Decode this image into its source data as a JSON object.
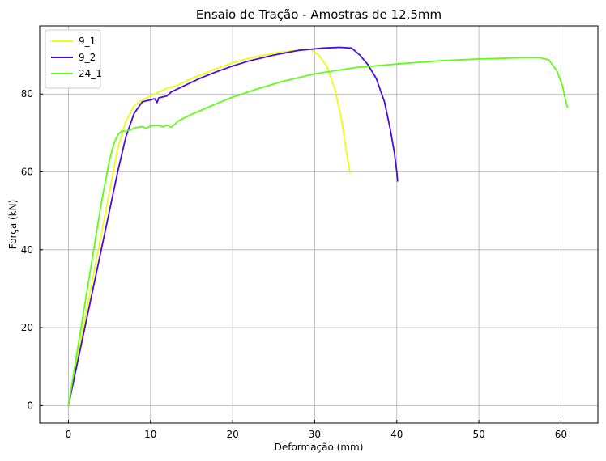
{
  "chart_data": {
    "type": "line",
    "title": "Ensaio de Tração - Amostras de 12,5mm",
    "xlabel": "Deformação (mm)",
    "ylabel": "Força (kN)",
    "xlim": [
      -3.5,
      64.5
    ],
    "ylim": [
      -4.5,
      97.5
    ],
    "xticks": [
      0,
      10,
      20,
      30,
      40,
      50,
      60
    ],
    "yticks": [
      0,
      20,
      40,
      60,
      80
    ],
    "grid": true,
    "legend_position": "top-left",
    "series": [
      {
        "name": "9_1",
        "color": "#e8ff14",
        "points": [
          [
            0,
            0
          ],
          [
            1,
            11
          ],
          [
            2,
            22
          ],
          [
            3,
            33
          ],
          [
            4,
            44
          ],
          [
            5,
            55
          ],
          [
            6,
            66
          ],
          [
            7,
            73
          ],
          [
            8,
            77
          ],
          [
            9,
            78.5
          ],
          [
            10,
            79.5
          ],
          [
            11,
            80.5
          ],
          [
            12,
            81.5
          ],
          [
            13,
            82
          ],
          [
            15,
            84
          ],
          [
            18,
            86.5
          ],
          [
            20,
            88
          ],
          [
            22,
            89.2
          ],
          [
            25,
            90.5
          ],
          [
            28,
            91.3
          ],
          [
            29.5,
            91.5
          ],
          [
            30.5,
            90
          ],
          [
            31.5,
            87
          ],
          [
            32.5,
            81
          ],
          [
            33.3,
            73
          ],
          [
            33.8,
            66
          ],
          [
            34.2,
            61
          ],
          [
            34.3,
            59.5
          ]
        ]
      },
      {
        "name": "9_2",
        "color": "#4b0bdb",
        "points": [
          [
            0,
            0
          ],
          [
            1,
            10
          ],
          [
            2,
            20
          ],
          [
            3,
            30
          ],
          [
            4,
            40
          ],
          [
            5,
            50
          ],
          [
            6,
            60
          ],
          [
            7,
            69
          ],
          [
            8,
            75
          ],
          [
            9,
            78
          ],
          [
            10,
            78.5
          ],
          [
            10.5,
            78.8
          ],
          [
            10.8,
            77.8
          ],
          [
            11,
            79
          ],
          [
            12,
            79.5
          ],
          [
            12.5,
            80.5
          ],
          [
            14,
            82
          ],
          [
            16,
            84
          ],
          [
            18,
            85.7
          ],
          [
            20,
            87.2
          ],
          [
            22,
            88.5
          ],
          [
            25,
            90
          ],
          [
            28,
            91.2
          ],
          [
            31,
            91.8
          ],
          [
            33,
            92
          ],
          [
            34.5,
            91.8
          ],
          [
            35.5,
            90
          ],
          [
            36.5,
            87.5
          ],
          [
            37.5,
            84
          ],
          [
            38.5,
            78
          ],
          [
            39.2,
            71
          ],
          [
            39.7,
            65
          ],
          [
            40,
            60
          ],
          [
            40.1,
            57.5
          ]
        ]
      },
      {
        "name": "24_1",
        "color": "#5dff14",
        "points": [
          [
            0,
            0
          ],
          [
            1,
            13
          ],
          [
            2,
            26
          ],
          [
            3,
            39
          ],
          [
            4,
            52
          ],
          [
            5,
            63
          ],
          [
            5.5,
            67
          ],
          [
            6,
            69.5
          ],
          [
            6.5,
            70.5
          ],
          [
            7,
            70.5
          ],
          [
            7.5,
            70.7
          ],
          [
            8,
            71.3
          ],
          [
            9,
            71.6
          ],
          [
            9.5,
            71.2
          ],
          [
            10,
            71.8
          ],
          [
            11,
            71.9
          ],
          [
            11.5,
            71.6
          ],
          [
            12,
            72
          ],
          [
            12.5,
            71.5
          ],
          [
            13,
            72.3
          ],
          [
            13.3,
            73
          ],
          [
            15,
            74.8
          ],
          [
            18,
            77.5
          ],
          [
            20,
            79.2
          ],
          [
            23,
            81.3
          ],
          [
            26,
            83.2
          ],
          [
            30,
            85.2
          ],
          [
            35,
            86.8
          ],
          [
            40,
            87.7
          ],
          [
            45,
            88.5
          ],
          [
            50,
            89
          ],
          [
            55,
            89.3
          ],
          [
            57.5,
            89.3
          ],
          [
            58.5,
            88.8
          ],
          [
            59.5,
            86
          ],
          [
            60.2,
            82
          ],
          [
            60.6,
            78
          ],
          [
            60.8,
            76.5
          ]
        ]
      }
    ]
  }
}
